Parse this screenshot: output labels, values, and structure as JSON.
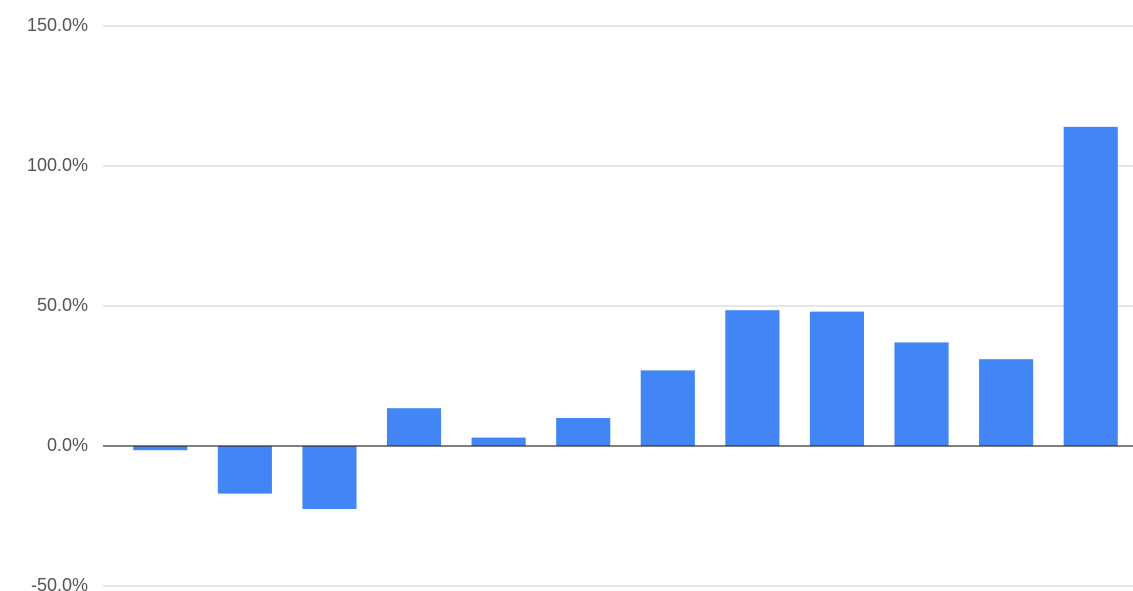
{
  "chart_data": {
    "type": "bar",
    "values": [
      -1.5,
      -17,
      -22.5,
      13.5,
      3,
      10,
      27,
      48.5,
      48,
      37,
      31,
      114
    ],
    "color": "#4285f4",
    "ylim": [
      -50,
      150
    ],
    "yticks": [
      {
        "value": -50,
        "label": "-50.0%"
      },
      {
        "value": 0,
        "label": "0.0%"
      },
      {
        "value": 50,
        "label": "50.0%"
      },
      {
        "value": 100,
        "label": "100.0%"
      },
      {
        "value": 150,
        "label": "150.0%"
      }
    ],
    "grid": true
  }
}
